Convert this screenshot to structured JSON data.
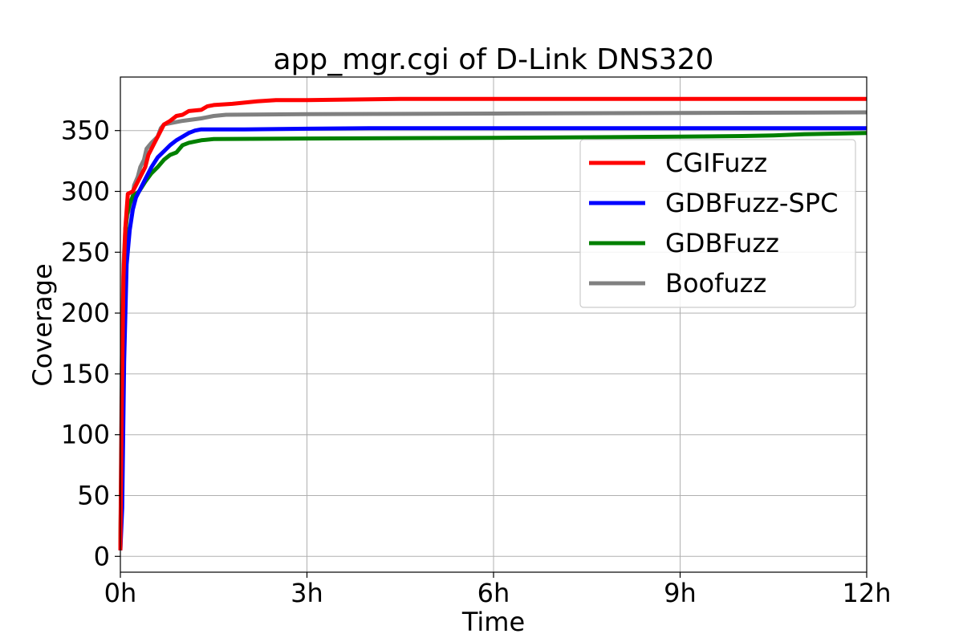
{
  "chart_data": {
    "type": "line",
    "title": "app_mgr.cgi of D-Link DNS320",
    "xlabel": "Time",
    "ylabel": "Coverage",
    "x_unit": "hours",
    "xlim": [
      0,
      12
    ],
    "ylim": [
      -13,
      394
    ],
    "x_ticks": [
      0,
      3,
      6,
      9,
      12
    ],
    "x_tick_labels": [
      "0h",
      "3h",
      "6h",
      "9h",
      "12h"
    ],
    "y_ticks": [
      0,
      50,
      100,
      150,
      200,
      250,
      300,
      350
    ],
    "y_tick_labels": [
      "0",
      "50",
      "100",
      "150",
      "200",
      "250",
      "300",
      "350"
    ],
    "grid": true,
    "legend_position": "upper-right",
    "series": [
      {
        "name": "CGIFuzz",
        "color": "#ff0000",
        "points": [
          [
            0,
            5
          ],
          [
            0.02,
            120
          ],
          [
            0.05,
            230
          ],
          [
            0.08,
            270
          ],
          [
            0.12,
            298
          ],
          [
            0.2,
            300
          ],
          [
            0.3,
            310
          ],
          [
            0.4,
            320
          ],
          [
            0.45,
            330
          ],
          [
            0.5,
            335
          ],
          [
            0.55,
            340
          ],
          [
            0.6,
            345
          ],
          [
            0.65,
            350
          ],
          [
            0.7,
            355
          ],
          [
            0.8,
            358
          ],
          [
            0.9,
            362
          ],
          [
            1.0,
            363
          ],
          [
            1.1,
            366
          ],
          [
            1.3,
            367
          ],
          [
            1.4,
            370
          ],
          [
            1.5,
            371
          ],
          [
            1.8,
            372
          ],
          [
            2.2,
            374
          ],
          [
            2.5,
            375
          ],
          [
            3,
            375
          ],
          [
            4.5,
            376
          ],
          [
            12,
            376
          ]
        ]
      },
      {
        "name": "GDBFuzz-SPC",
        "color": "#0000ff",
        "points": [
          [
            0,
            5
          ],
          [
            0.03,
            40
          ],
          [
            0.06,
            160
          ],
          [
            0.1,
            240
          ],
          [
            0.15,
            268
          ],
          [
            0.2,
            285
          ],
          [
            0.25,
            295
          ],
          [
            0.3,
            300
          ],
          [
            0.4,
            310
          ],
          [
            0.5,
            320
          ],
          [
            0.6,
            328
          ],
          [
            0.7,
            333
          ],
          [
            0.8,
            338
          ],
          [
            0.9,
            342
          ],
          [
            1.0,
            345
          ],
          [
            1.1,
            348
          ],
          [
            1.2,
            350
          ],
          [
            1.3,
            351
          ],
          [
            2,
            351
          ],
          [
            3,
            351.5
          ],
          [
            4,
            352
          ],
          [
            12,
            352
          ]
        ]
      },
      {
        "name": "GDBFuzz",
        "color": "#008000",
        "points": [
          [
            0,
            5
          ],
          [
            0.02,
            100
          ],
          [
            0.05,
            200
          ],
          [
            0.08,
            260
          ],
          [
            0.1,
            280
          ],
          [
            0.15,
            290
          ],
          [
            0.2,
            296
          ],
          [
            0.3,
            300
          ],
          [
            0.4,
            308
          ],
          [
            0.5,
            315
          ],
          [
            0.6,
            320
          ],
          [
            0.7,
            326
          ],
          [
            0.8,
            330
          ],
          [
            0.9,
            332
          ],
          [
            1.0,
            338
          ],
          [
            1.1,
            340
          ],
          [
            1.3,
            342
          ],
          [
            1.5,
            343
          ],
          [
            3,
            343.5
          ],
          [
            6,
            344
          ],
          [
            9,
            345
          ],
          [
            10,
            345.5
          ],
          [
            10.5,
            346
          ],
          [
            11,
            347
          ],
          [
            12,
            348
          ]
        ]
      },
      {
        "name": "Boofuzz",
        "color": "#808080",
        "points": [
          [
            0,
            5
          ],
          [
            0.02,
            150
          ],
          [
            0.05,
            240
          ],
          [
            0.08,
            270
          ],
          [
            0.12,
            282
          ],
          [
            0.18,
            290
          ],
          [
            0.22,
            305
          ],
          [
            0.28,
            312
          ],
          [
            0.32,
            320
          ],
          [
            0.38,
            326
          ],
          [
            0.42,
            335
          ],
          [
            0.5,
            340
          ],
          [
            0.6,
            345
          ],
          [
            0.65,
            352
          ],
          [
            0.7,
            355
          ],
          [
            0.9,
            357
          ],
          [
            1.0,
            358
          ],
          [
            1.3,
            360
          ],
          [
            1.5,
            362
          ],
          [
            1.7,
            363
          ],
          [
            3,
            363.5
          ],
          [
            6,
            364
          ],
          [
            9,
            364.5
          ],
          [
            12,
            365
          ]
        ]
      }
    ]
  }
}
